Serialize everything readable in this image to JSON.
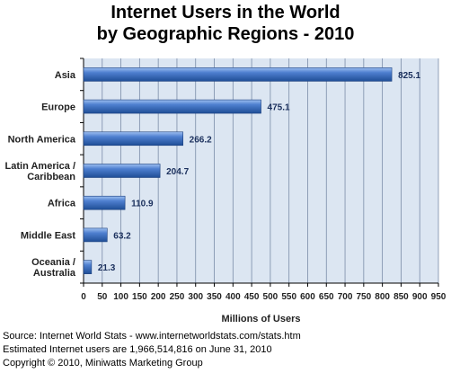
{
  "chart_data": {
    "type": "bar",
    "orientation": "horizontal",
    "title_line1": "Internet Users in the World",
    "title_line2": "by Geographic Regions - 2010",
    "xlabel": "Millions of Users",
    "ylabel": "",
    "xlim": [
      0,
      950
    ],
    "xticks": [
      0,
      50,
      100,
      150,
      200,
      250,
      300,
      350,
      400,
      450,
      500,
      550,
      600,
      650,
      700,
      750,
      800,
      850,
      900,
      950
    ],
    "grid": true,
    "legend": "none",
    "categories": [
      [
        "Asia"
      ],
      [
        "Europe"
      ],
      [
        "North America"
      ],
      [
        "Latin America /",
        "Caribbean"
      ],
      [
        "Africa"
      ],
      [
        "Middle East"
      ],
      [
        "Oceania  /",
        "Australia"
      ]
    ],
    "values": [
      825.1,
      475.1,
      266.2,
      204.7,
      110.9,
      63.2,
      21.3
    ],
    "value_labels": [
      "825.1",
      "475.1",
      "266.2",
      "204.7",
      "110.9",
      "63.2",
      "21.3"
    ],
    "colors": {
      "plot_background": "#dce6f2",
      "grid": "#7a8ca8",
      "bar_dark": "#1f4e96",
      "bar_light": "#6f9ee6",
      "value_label": "#1a2f5c"
    }
  },
  "footer": {
    "source": "Source: Internet World Stats - www.internetworldstats.com/stats.htm",
    "estimate": "Estimated Internet users are 1,966,514,816 on June 31, 2010",
    "copyright": "Copyright © 2010, Miniwatts Marketing Group"
  }
}
